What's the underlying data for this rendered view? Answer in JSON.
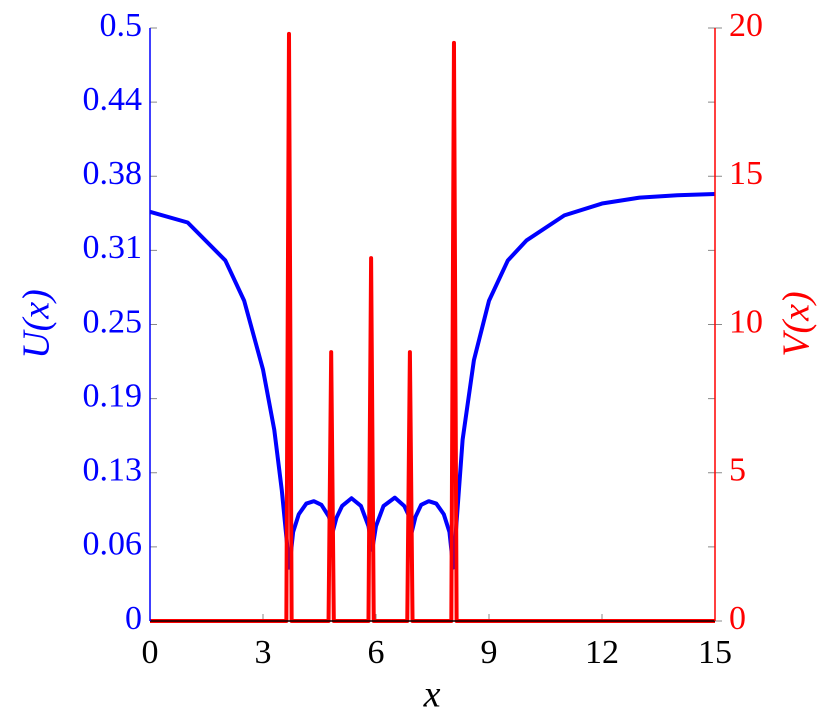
{
  "chart_data": {
    "type": "line",
    "xlabel": "x",
    "ylabel": "U(x)",
    "y2label": "V(x)",
    "xlim": [
      0,
      15
    ],
    "xticks": [
      0,
      3,
      6,
      9,
      12,
      15
    ],
    "ylim": [
      0,
      0.5
    ],
    "yticks": [
      0,
      {
        "value": 0.0625,
        "label": "0.06"
      },
      {
        "value": 0.125,
        "label": "0.13"
      },
      {
        "value": 0.1875,
        "label": "0.19"
      },
      0.25,
      {
        "value": 0.3125,
        "label": "0.31"
      },
      {
        "value": 0.375,
        "label": "0.38"
      },
      {
        "value": 0.4375,
        "label": "0.44"
      },
      0.5
    ],
    "y2lim": [
      0,
      20
    ],
    "y2ticks": [
      0,
      5,
      10,
      15,
      20
    ],
    "series": [
      {
        "name": "U(x)",
        "color": "#0000ff",
        "x": [
          0,
          1,
          2,
          2.5,
          3,
          3.3,
          3.5,
          3.7,
          3.8,
          3.95,
          4.15,
          4.35,
          4.55,
          4.75,
          4.85,
          4.95,
          5.1,
          5.35,
          5.6,
          5.8,
          5.9,
          6.0,
          6.2,
          6.5,
          6.75,
          6.9,
          6.95,
          7.05,
          7.2,
          7.4,
          7.6,
          7.8,
          7.95,
          8.05,
          8.3,
          8.6,
          9,
          9.5,
          10,
          11,
          12,
          13,
          14,
          15
        ],
        "values": [
          0.345,
          0.336,
          0.304,
          0.27,
          0.212,
          0.161,
          0.11,
          0.045,
          0.075,
          0.09,
          0.099,
          0.101,
          0.098,
          0.088,
          0.075,
          0.087,
          0.097,
          0.1035,
          0.097,
          0.08,
          0.06,
          0.08,
          0.097,
          0.104,
          0.097,
          0.087,
          0.075,
          0.088,
          0.098,
          0.101,
          0.099,
          0.09,
          0.075,
          0.045,
          0.153,
          0.22,
          0.27,
          0.304,
          0.321,
          0.342,
          0.352,
          0.357,
          0.359,
          0.36
        ]
      },
      {
        "name": "V(x)",
        "color": "#ff0000",
        "axis": "y2",
        "x": [
          0,
          3.62,
          3.69,
          3.76,
          4.74,
          4.81,
          4.88,
          5.8,
          5.87,
          5.94,
          6.83,
          6.9,
          6.97,
          8.0,
          8.07,
          8.14,
          15
        ],
        "values": [
          0,
          0,
          19.8,
          0,
          0,
          9.07,
          0,
          0,
          12.24,
          0,
          0,
          9.07,
          0,
          0,
          19.5,
          0,
          0
        ]
      }
    ]
  }
}
